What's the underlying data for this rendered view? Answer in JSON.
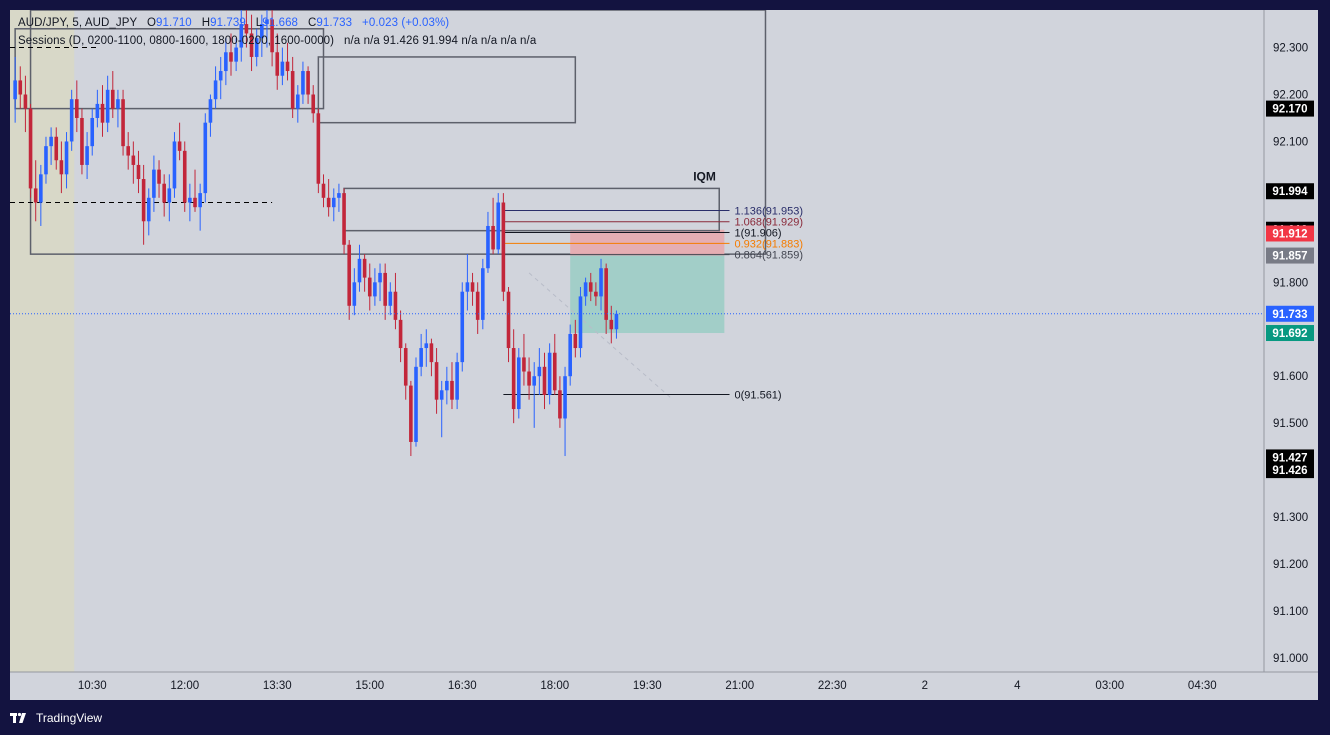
{
  "header": {
    "symbol": "AUD/JPY, 5, AUD_JPY",
    "open_label": "O",
    "open": "91.710",
    "high_label": "H",
    "high": "91.739",
    "low_label": "L",
    "low": "91.668",
    "close_label": "C",
    "close": "91.733",
    "change": "+0.023 (+0.03%)",
    "sessions_title": "Sessions (D, 0200-1100, 0800-1600, 1800-0200, 1600-0000)",
    "sessions_values": "n/a  n/a  91.426  91.994  n/a  n/a  n/a  n/a"
  },
  "footer": {
    "brand": "TradingView"
  },
  "colors": {
    "bull": "#2962ff",
    "bear": "#c2263a",
    "grid_bg": "#d1d4dc",
    "session_bg": "#d8d8c8",
    "last_price": "#2962ff",
    "tp_zone": "#9ccdc5",
    "sl_zone": "#e7aaae"
  },
  "chart_data": {
    "type": "candlestick",
    "symbol": "AUD/JPY",
    "timeframe": "5",
    "ylim": [
      90.97,
      92.38
    ],
    "y_ticks": [
      "92.300",
      "92.200",
      "92.100",
      "91.800",
      "91.600",
      "91.500",
      "91.300",
      "91.200",
      "91.100",
      "91.000"
    ],
    "x_ticks": [
      {
        "label": "10:30",
        "t": 0
      },
      {
        "label": "12:00",
        "t": 18
      },
      {
        "label": "13:30",
        "t": 36
      },
      {
        "label": "15:00",
        "t": 54
      },
      {
        "label": "16:30",
        "t": 72
      },
      {
        "label": "18:00",
        "t": 90
      },
      {
        "label": "19:30",
        "t": 108
      },
      {
        "label": "21:00",
        "t": 126
      },
      {
        "label": "22:30",
        "t": 144
      },
      {
        "label": "2",
        "t": 162
      },
      {
        "label": "4",
        "t": 180
      },
      {
        "label": "03:00",
        "t": 198
      },
      {
        "label": "04:30",
        "t": 216
      }
    ],
    "x_range": [
      -16,
      228
    ],
    "candles": [
      {
        "t": -15,
        "o": 92.19,
        "h": 92.28,
        "l": 92.14,
        "c": 92.23
      },
      {
        "t": -14,
        "o": 92.23,
        "h": 92.26,
        "l": 92.17,
        "c": 92.2
      },
      {
        "t": -13,
        "o": 92.2,
        "h": 92.24,
        "l": 92.12,
        "c": 92.17
      },
      {
        "t": -12,
        "o": 92.17,
        "h": 92.18,
        "l": 91.98,
        "c": 92.0
      },
      {
        "t": -11,
        "o": 92.0,
        "h": 92.06,
        "l": 91.93,
        "c": 91.97
      },
      {
        "t": -10,
        "o": 91.97,
        "h": 92.05,
        "l": 91.92,
        "c": 92.03
      },
      {
        "t": -9,
        "o": 92.03,
        "h": 92.11,
        "l": 92.01,
        "c": 92.09
      },
      {
        "t": -8,
        "o": 92.09,
        "h": 92.13,
        "l": 92.05,
        "c": 92.11
      },
      {
        "t": -7,
        "o": 92.11,
        "h": 92.13,
        "l": 92.04,
        "c": 92.06
      },
      {
        "t": -6,
        "o": 92.06,
        "h": 92.1,
        "l": 91.99,
        "c": 92.03
      },
      {
        "t": -5,
        "o": 92.03,
        "h": 92.12,
        "l": 92.0,
        "c": 92.1
      },
      {
        "t": -4,
        "o": 92.1,
        "h": 92.21,
        "l": 92.08,
        "c": 92.19
      },
      {
        "t": -3,
        "o": 92.19,
        "h": 92.23,
        "l": 92.12,
        "c": 92.15
      },
      {
        "t": -2,
        "o": 92.15,
        "h": 92.17,
        "l": 92.03,
        "c": 92.05
      },
      {
        "t": -1,
        "o": 92.05,
        "h": 92.12,
        "l": 92.02,
        "c": 92.09
      },
      {
        "t": 0,
        "o": 92.09,
        "h": 92.17,
        "l": 92.07,
        "c": 92.15
      },
      {
        "t": 1,
        "o": 92.15,
        "h": 92.21,
        "l": 92.13,
        "c": 92.18
      },
      {
        "t": 2,
        "o": 92.18,
        "h": 92.22,
        "l": 92.11,
        "c": 92.14
      },
      {
        "t": 3,
        "o": 92.14,
        "h": 92.24,
        "l": 92.12,
        "c": 92.21
      },
      {
        "t": 4,
        "o": 92.21,
        "h": 92.25,
        "l": 92.15,
        "c": 92.17
      },
      {
        "t": 5,
        "o": 92.17,
        "h": 92.21,
        "l": 92.13,
        "c": 92.19
      },
      {
        "t": 6,
        "o": 92.19,
        "h": 92.21,
        "l": 92.07,
        "c": 92.09
      },
      {
        "t": 7,
        "o": 92.09,
        "h": 92.12,
        "l": 92.04,
        "c": 92.07
      },
      {
        "t": 8,
        "o": 92.07,
        "h": 92.1,
        "l": 92.01,
        "c": 92.05
      },
      {
        "t": 9,
        "o": 92.05,
        "h": 92.08,
        "l": 91.99,
        "c": 92.02
      },
      {
        "t": 10,
        "o": 92.02,
        "h": 92.05,
        "l": 91.88,
        "c": 91.93
      },
      {
        "t": 11,
        "o": 91.93,
        "h": 92.0,
        "l": 91.9,
        "c": 91.98
      },
      {
        "t": 12,
        "o": 91.98,
        "h": 92.07,
        "l": 91.95,
        "c": 92.04
      },
      {
        "t": 13,
        "o": 92.04,
        "h": 92.06,
        "l": 91.98,
        "c": 92.01
      },
      {
        "t": 14,
        "o": 92.01,
        "h": 92.03,
        "l": 91.94,
        "c": 91.97
      },
      {
        "t": 15,
        "o": 91.97,
        "h": 92.03,
        "l": 91.93,
        "c": 92.0
      },
      {
        "t": 16,
        "o": 92.0,
        "h": 92.12,
        "l": 91.98,
        "c": 92.1
      },
      {
        "t": 17,
        "o": 92.1,
        "h": 92.14,
        "l": 92.06,
        "c": 92.08
      },
      {
        "t": 18,
        "o": 92.08,
        "h": 92.1,
        "l": 91.95,
        "c": 91.97
      },
      {
        "t": 19,
        "o": 91.97,
        "h": 92.01,
        "l": 91.93,
        "c": 91.98
      },
      {
        "t": 20,
        "o": 91.98,
        "h": 92.04,
        "l": 91.95,
        "c": 91.96
      },
      {
        "t": 21,
        "o": 91.96,
        "h": 92.01,
        "l": 91.91,
        "c": 91.99
      },
      {
        "t": 22,
        "o": 91.99,
        "h": 92.16,
        "l": 91.97,
        "c": 92.14
      },
      {
        "t": 23,
        "o": 92.14,
        "h": 92.2,
        "l": 92.11,
        "c": 92.19
      },
      {
        "t": 24,
        "o": 92.19,
        "h": 92.26,
        "l": 92.17,
        "c": 92.23
      },
      {
        "t": 25,
        "o": 92.23,
        "h": 92.28,
        "l": 92.19,
        "c": 92.25
      },
      {
        "t": 26,
        "o": 92.25,
        "h": 92.32,
        "l": 92.22,
        "c": 92.29
      },
      {
        "t": 27,
        "o": 92.29,
        "h": 92.33,
        "l": 92.24,
        "c": 92.27
      },
      {
        "t": 28,
        "o": 92.27,
        "h": 92.32,
        "l": 92.25,
        "c": 92.3
      },
      {
        "t": 29,
        "o": 92.3,
        "h": 92.38,
        "l": 92.27,
        "c": 92.35
      },
      {
        "t": 30,
        "o": 92.35,
        "h": 92.38,
        "l": 92.3,
        "c": 92.33
      },
      {
        "t": 31,
        "o": 92.33,
        "h": 92.37,
        "l": 92.25,
        "c": 92.28
      },
      {
        "t": 32,
        "o": 92.28,
        "h": 92.34,
        "l": 92.26,
        "c": 92.32
      },
      {
        "t": 33,
        "o": 92.32,
        "h": 92.37,
        "l": 92.28,
        "c": 92.35
      },
      {
        "t": 34,
        "o": 92.35,
        "h": 92.38,
        "l": 92.3,
        "c": 92.36
      },
      {
        "t": 35,
        "o": 92.36,
        "h": 92.38,
        "l": 92.26,
        "c": 92.29
      },
      {
        "t": 36,
        "o": 92.29,
        "h": 92.33,
        "l": 92.21,
        "c": 92.24
      },
      {
        "t": 37,
        "o": 92.24,
        "h": 92.3,
        "l": 92.22,
        "c": 92.27
      },
      {
        "t": 38,
        "o": 92.27,
        "h": 92.31,
        "l": 92.23,
        "c": 92.25
      },
      {
        "t": 39,
        "o": 92.25,
        "h": 92.28,
        "l": 92.15,
        "c": 92.17
      },
      {
        "t": 40,
        "o": 92.17,
        "h": 92.22,
        "l": 92.14,
        "c": 92.2
      },
      {
        "t": 41,
        "o": 92.2,
        "h": 92.27,
        "l": 92.18,
        "c": 92.25
      },
      {
        "t": 42,
        "o": 92.25,
        "h": 92.26,
        "l": 92.18,
        "c": 92.2
      },
      {
        "t": 43,
        "o": 92.2,
        "h": 92.22,
        "l": 92.14,
        "c": 92.16
      },
      {
        "t": 44,
        "o": 92.16,
        "h": 92.17,
        "l": 91.99,
        "c": 92.01
      },
      {
        "t": 45,
        "o": 92.01,
        "h": 92.03,
        "l": 91.96,
        "c": 91.98
      },
      {
        "t": 46,
        "o": 91.98,
        "h": 92.02,
        "l": 91.94,
        "c": 91.96
      },
      {
        "t": 47,
        "o": 91.96,
        "h": 92.0,
        "l": 91.93,
        "c": 91.98
      },
      {
        "t": 48,
        "o": 91.98,
        "h": 92.01,
        "l": 91.95,
        "c": 91.99
      },
      {
        "t": 49,
        "o": 91.99,
        "h": 92.0,
        "l": 91.86,
        "c": 91.88
      },
      {
        "t": 50,
        "o": 91.88,
        "h": 91.89,
        "l": 91.72,
        "c": 91.75
      },
      {
        "t": 51,
        "o": 91.75,
        "h": 91.83,
        "l": 91.73,
        "c": 91.8
      },
      {
        "t": 52,
        "o": 91.8,
        "h": 91.88,
        "l": 91.78,
        "c": 91.85
      },
      {
        "t": 53,
        "o": 91.85,
        "h": 91.86,
        "l": 91.78,
        "c": 91.81
      },
      {
        "t": 54,
        "o": 91.81,
        "h": 91.84,
        "l": 91.74,
        "c": 91.77
      },
      {
        "t": 55,
        "o": 91.77,
        "h": 91.83,
        "l": 91.75,
        "c": 91.8
      },
      {
        "t": 56,
        "o": 91.8,
        "h": 91.84,
        "l": 91.76,
        "c": 91.82
      },
      {
        "t": 57,
        "o": 91.82,
        "h": 91.84,
        "l": 91.72,
        "c": 91.75
      },
      {
        "t": 58,
        "o": 91.75,
        "h": 91.8,
        "l": 91.73,
        "c": 91.78
      },
      {
        "t": 59,
        "o": 91.78,
        "h": 91.82,
        "l": 91.7,
        "c": 91.72
      },
      {
        "t": 60,
        "o": 91.72,
        "h": 91.74,
        "l": 91.63,
        "c": 91.66
      },
      {
        "t": 61,
        "o": 91.66,
        "h": 91.67,
        "l": 91.55,
        "c": 91.58
      },
      {
        "t": 62,
        "o": 91.58,
        "h": 91.59,
        "l": 91.43,
        "c": 91.46
      },
      {
        "t": 63,
        "o": 91.46,
        "h": 91.64,
        "l": 91.45,
        "c": 91.62
      },
      {
        "t": 64,
        "o": 91.62,
        "h": 91.69,
        "l": 91.6,
        "c": 91.66
      },
      {
        "t": 65,
        "o": 91.66,
        "h": 91.7,
        "l": 91.62,
        "c": 91.67
      },
      {
        "t": 66,
        "o": 91.67,
        "h": 91.68,
        "l": 91.6,
        "c": 91.63
      },
      {
        "t": 67,
        "o": 91.63,
        "h": 91.66,
        "l": 91.52,
        "c": 91.55
      },
      {
        "t": 68,
        "o": 91.55,
        "h": 91.59,
        "l": 91.47,
        "c": 91.57
      },
      {
        "t": 69,
        "o": 91.57,
        "h": 91.62,
        "l": 91.54,
        "c": 91.59
      },
      {
        "t": 70,
        "o": 91.59,
        "h": 91.63,
        "l": 91.53,
        "c": 91.55
      },
      {
        "t": 71,
        "o": 91.55,
        "h": 91.65,
        "l": 91.53,
        "c": 91.63
      },
      {
        "t": 72,
        "o": 91.63,
        "h": 91.8,
        "l": 91.61,
        "c": 91.78
      },
      {
        "t": 73,
        "o": 91.78,
        "h": 91.86,
        "l": 91.74,
        "c": 91.8
      },
      {
        "t": 74,
        "o": 91.8,
        "h": 91.82,
        "l": 91.75,
        "c": 91.78
      },
      {
        "t": 75,
        "o": 91.78,
        "h": 91.8,
        "l": 91.69,
        "c": 91.72
      },
      {
        "t": 76,
        "o": 91.72,
        "h": 91.85,
        "l": 91.7,
        "c": 91.83
      },
      {
        "t": 77,
        "o": 91.83,
        "h": 91.95,
        "l": 91.82,
        "c": 91.92
      },
      {
        "t": 78,
        "o": 91.92,
        "h": 91.98,
        "l": 91.86,
        "c": 91.87
      },
      {
        "t": 79,
        "o": 91.87,
        "h": 91.99,
        "l": 91.86,
        "c": 91.97
      },
      {
        "t": 80,
        "o": 91.97,
        "h": 91.99,
        "l": 91.76,
        "c": 91.78
      },
      {
        "t": 81,
        "o": 91.78,
        "h": 91.79,
        "l": 91.63,
        "c": 91.66
      },
      {
        "t": 82,
        "o": 91.66,
        "h": 91.7,
        "l": 91.5,
        "c": 91.53
      },
      {
        "t": 83,
        "o": 91.53,
        "h": 91.66,
        "l": 91.51,
        "c": 91.64
      },
      {
        "t": 84,
        "o": 91.64,
        "h": 91.69,
        "l": 91.58,
        "c": 91.61
      },
      {
        "t": 85,
        "o": 91.61,
        "h": 91.64,
        "l": 91.55,
        "c": 91.58
      },
      {
        "t": 86,
        "o": 91.58,
        "h": 91.63,
        "l": 91.49,
        "c": 91.6
      },
      {
        "t": 87,
        "o": 91.6,
        "h": 91.66,
        "l": 91.56,
        "c": 91.62
      },
      {
        "t": 88,
        "o": 91.62,
        "h": 91.65,
        "l": 91.53,
        "c": 91.56
      },
      {
        "t": 89,
        "o": 91.56,
        "h": 91.67,
        "l": 91.54,
        "c": 91.65
      },
      {
        "t": 90,
        "o": 91.65,
        "h": 91.69,
        "l": 91.56,
        "c": 91.57
      },
      {
        "t": 91,
        "o": 91.57,
        "h": 91.6,
        "l": 91.49,
        "c": 91.51
      },
      {
        "t": 92,
        "o": 91.51,
        "h": 91.62,
        "l": 91.43,
        "c": 91.6
      },
      {
        "t": 93,
        "o": 91.6,
        "h": 91.71,
        "l": 91.58,
        "c": 91.69
      },
      {
        "t": 94,
        "o": 91.69,
        "h": 91.72,
        "l": 91.64,
        "c": 91.66
      },
      {
        "t": 95,
        "o": 91.66,
        "h": 91.79,
        "l": 91.64,
        "c": 91.77
      },
      {
        "t": 96,
        "o": 91.77,
        "h": 91.81,
        "l": 91.75,
        "c": 91.8
      },
      {
        "t": 97,
        "o": 91.8,
        "h": 91.82,
        "l": 91.76,
        "c": 91.78
      },
      {
        "t": 98,
        "o": 91.78,
        "h": 91.8,
        "l": 91.75,
        "c": 91.77
      },
      {
        "t": 99,
        "o": 91.77,
        "h": 91.85,
        "l": 91.74,
        "c": 91.83
      },
      {
        "t": 100,
        "o": 91.83,
        "h": 91.84,
        "l": 91.69,
        "c": 91.72
      },
      {
        "t": 101,
        "o": 91.72,
        "h": 91.75,
        "l": 91.67,
        "c": 91.7
      },
      {
        "t": 102,
        "o": 91.7,
        "h": 91.74,
        "l": 91.68,
        "c": 91.733
      }
    ],
    "session_box_1": {
      "t0": -15,
      "t1": 45,
      "top": 92.34,
      "bottom": 92.17
    },
    "session_box_2": {
      "t0": 44,
      "t1": 94,
      "top": 92.28,
      "bottom": 92.14
    },
    "iqm_box": {
      "t0": 49,
      "t1": 122,
      "top": 92.0,
      "bottom": 91.91
    },
    "outer_box": {
      "t0": -12,
      "t1": 131,
      "top": 92.38,
      "bottom": 91.86
    },
    "iqm_label": "IQM",
    "dashed_levels": [
      {
        "price": 92.3,
        "t0": -16,
        "t1": 1
      },
      {
        "price": 91.97,
        "t0": -16,
        "t1": 35
      }
    ],
    "fib": {
      "t0": 80,
      "t1": 124,
      "levels": [
        {
          "label": "1.136(91.953)",
          "price": 91.953,
          "color": "#2a2e6a"
        },
        {
          "label": "1.068(91.929)",
          "price": 91.929,
          "color": "#8a2a3a"
        },
        {
          "label": "1(91.906)",
          "price": 91.906,
          "color": "#131722"
        },
        {
          "label": "0.932(91.883)",
          "price": 91.883,
          "color": "#f57c00"
        },
        {
          "label": "0.864(91.859)",
          "price": 91.859,
          "color": "#434651"
        },
        {
          "label": "0(91.561)",
          "price": 91.561,
          "color": "#131722"
        }
      ]
    },
    "position": {
      "t0": 93,
      "t1": 123,
      "entry": 91.857,
      "stop": 91.912,
      "target": 91.692
    },
    "price_labels": [
      {
        "text": "92.170",
        "price": 92.17,
        "bg": "#000000",
        "fg": "#ffffff"
      },
      {
        "text": "91.994",
        "price": 91.994,
        "bg": "#000000",
        "fg": "#ffffff"
      },
      {
        "text": "91.912",
        "price": 91.912,
        "bg": "#000000",
        "fg": "#ffffff"
      },
      {
        "text": "91.912",
        "price": 91.904,
        "bg": "#f23645",
        "fg": "#ffffff"
      },
      {
        "text": "91.857",
        "price": 91.857,
        "bg": "#787b86",
        "fg": "#ffffff"
      },
      {
        "text": "91.733",
        "price": 91.733,
        "bg": "#2962ff",
        "fg": "#ffffff"
      },
      {
        "text": "91.692",
        "price": 91.692,
        "bg": "#089981",
        "fg": "#ffffff"
      },
      {
        "text": "91.427",
        "price": 91.427,
        "bg": "#000000",
        "fg": "#ffffff"
      },
      {
        "text": "91.426",
        "price": 91.4,
        "bg": "#000000",
        "fg": "#ffffff"
      }
    ],
    "last_price": 91.733
  }
}
